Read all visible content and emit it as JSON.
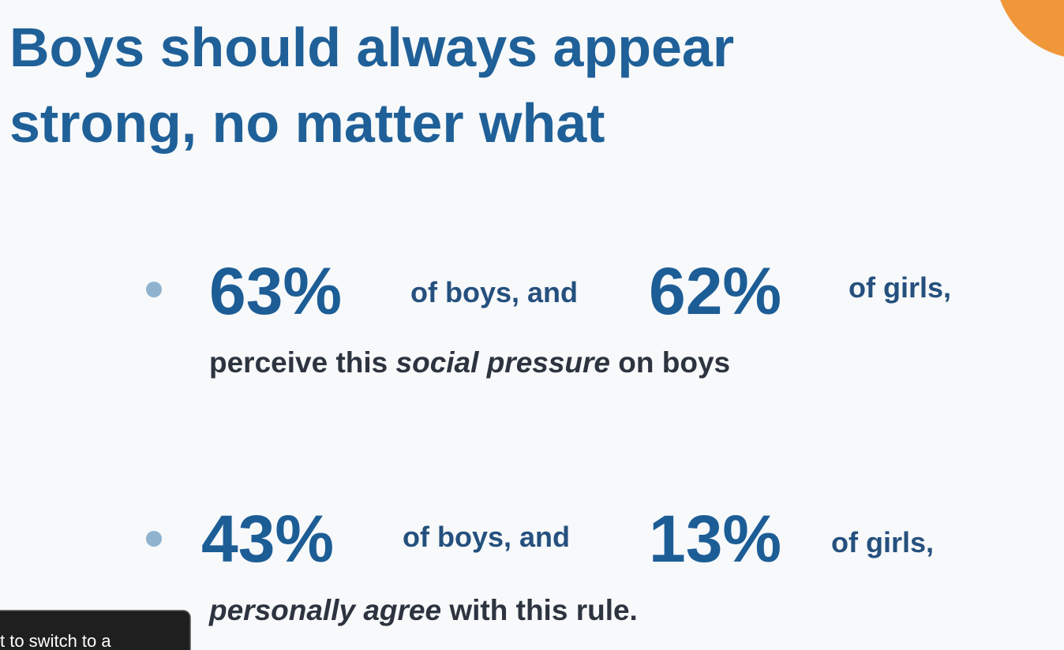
{
  "header": {
    "title_lines": [
      "Boys should always appear",
      "strong, no matter what"
    ]
  },
  "bullets": [
    {
      "boys_percent": "63%",
      "boys_text": "of boys, and",
      "girls_percent": "62%",
      "girls_text": "of girls,",
      "detail": [
        "perceive this ",
        "social pressure",
        " on boys"
      ]
    },
    {
      "boys_percent": "43%",
      "boys_text": "of boys, and",
      "girls_percent": "13%",
      "girls_text": "of girls,",
      "detail": [
        "personally agree",
        " with this rule."
      ]
    }
  ],
  "tooltip": {
    "text": "t to switch to a"
  }
}
